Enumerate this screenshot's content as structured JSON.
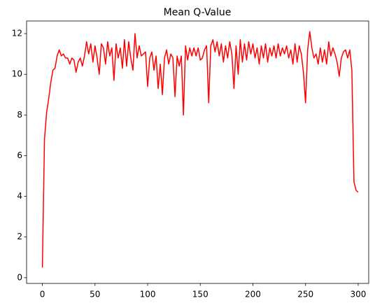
{
  "chart_data": {
    "type": "line",
    "title": "Mean Q-Value",
    "color": "#ff0000",
    "x": [
      0,
      2,
      4,
      6,
      8,
      10,
      12,
      14,
      16,
      18,
      20,
      22,
      24,
      26,
      28,
      30,
      32,
      34,
      36,
      38,
      40,
      42,
      44,
      46,
      48,
      50,
      52,
      54,
      56,
      58,
      60,
      62,
      64,
      66,
      68,
      70,
      72,
      74,
      76,
      78,
      80,
      82,
      84,
      86,
      88,
      90,
      92,
      94,
      96,
      98,
      100,
      102,
      104,
      106,
      108,
      110,
      112,
      114,
      116,
      118,
      120,
      122,
      124,
      126,
      128,
      130,
      132,
      134,
      136,
      138,
      140,
      142,
      144,
      146,
      148,
      150,
      152,
      154,
      156,
      158,
      160,
      162,
      164,
      166,
      168,
      170,
      172,
      174,
      176,
      178,
      180,
      182,
      184,
      186,
      188,
      190,
      192,
      194,
      196,
      198,
      200,
      202,
      204,
      206,
      208,
      210,
      212,
      214,
      216,
      218,
      220,
      222,
      224,
      226,
      228,
      230,
      232,
      234,
      236,
      238,
      240,
      242,
      244,
      246,
      248,
      250,
      252,
      254,
      256,
      258,
      260,
      262,
      264,
      266,
      268,
      270,
      272,
      274,
      276,
      278,
      280,
      282,
      284,
      286,
      288,
      290,
      292,
      294,
      296,
      298,
      300
    ],
    "values": [
      0.5,
      6.8,
      8.1,
      8.8,
      9.6,
      10.2,
      10.3,
      10.9,
      11.2,
      10.9,
      11.0,
      10.8,
      10.8,
      10.5,
      10.8,
      10.7,
      10.1,
      10.6,
      10.8,
      10.4,
      10.9,
      11.6,
      11.0,
      11.5,
      10.6,
      11.4,
      10.8,
      10.0,
      11.5,
      11.3,
      10.5,
      11.6,
      10.9,
      11.3,
      9.7,
      11.5,
      10.8,
      11.3,
      10.3,
      11.7,
      10.4,
      11.6,
      10.8,
      10.2,
      12.0,
      10.8,
      11.4,
      10.9,
      11.0,
      11.1,
      9.4,
      10.8,
      11.1,
      10.2,
      10.9,
      9.3,
      10.5,
      9.0,
      10.8,
      11.2,
      10.5,
      11.0,
      10.8,
      8.9,
      10.9,
      10.4,
      10.9,
      8.0,
      11.4,
      10.7,
      11.3,
      10.9,
      11.3,
      10.9,
      11.3,
      10.7,
      10.8,
      11.2,
      11.4,
      8.6,
      11.4,
      11.7,
      11.1,
      11.6,
      10.9,
      11.5,
      10.6,
      11.4,
      10.8,
      11.6,
      11.0,
      9.3,
      11.4,
      10.0,
      11.7,
      10.6,
      11.5,
      10.7,
      11.6,
      11.0,
      11.5,
      10.8,
      11.3,
      10.5,
      11.4,
      10.8,
      11.5,
      10.6,
      11.3,
      10.9,
      11.4,
      10.8,
      11.5,
      10.9,
      11.3,
      11.0,
      11.4,
      10.8,
      11.2,
      10.5,
      11.5,
      10.6,
      11.4,
      11.0,
      10.1,
      8.6,
      11.2,
      12.1,
      11.3,
      10.8,
      11.0,
      10.5,
      11.3,
      10.6,
      11.2,
      10.5,
      11.6,
      10.9,
      11.3,
      11.0,
      10.6,
      9.9,
      10.8,
      11.1,
      11.2,
      10.8,
      11.2,
      10.2,
      4.7,
      4.3,
      4.2
    ],
    "xlim": [
      -15,
      310
    ],
    "xticks": [
      0,
      50,
      100,
      150,
      200,
      250,
      300
    ],
    "ylim": [
      -0.28,
      12.62
    ],
    "yticks": [
      0,
      2,
      4,
      6,
      8,
      10,
      12
    ]
  }
}
